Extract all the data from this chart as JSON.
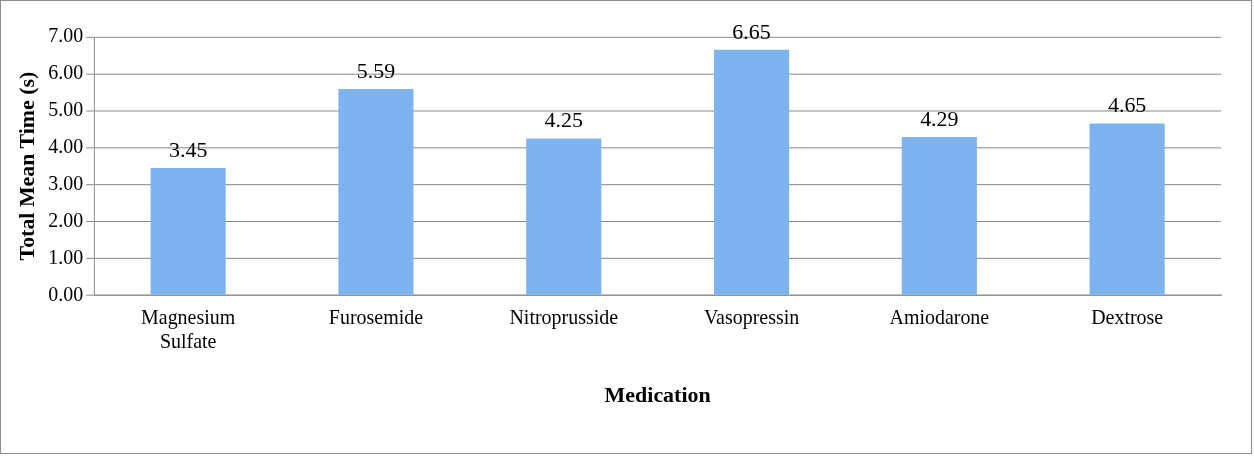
{
  "chart_data": {
    "type": "bar",
    "xlabel": "Medication",
    "ylabel": "Total Mean Time (s)",
    "categories": [
      "Magnesium Sulfate",
      "Furosemide",
      "Nitroprusside",
      "Vasopressin",
      "Amiodarone",
      "Dextrose"
    ],
    "values": [
      3.45,
      5.59,
      4.25,
      6.65,
      4.29,
      4.65
    ],
    "color": "#7db3ee",
    "ylim": [
      0,
      7
    ],
    "yticks": [
      {
        "value": 0,
        "label": "0.00"
      },
      {
        "value": 1,
        "label": "1.00"
      },
      {
        "value": 2,
        "label": "2.00"
      },
      {
        "value": 3,
        "label": "3.00"
      },
      {
        "value": 4,
        "label": "4.00"
      },
      {
        "value": 5,
        "label": "5.00"
      },
      {
        "value": 6,
        "label": "6.00"
      },
      {
        "value": 7,
        "label": "7.00"
      }
    ],
    "grid": "y",
    "legend": false,
    "data_labels": true
  }
}
